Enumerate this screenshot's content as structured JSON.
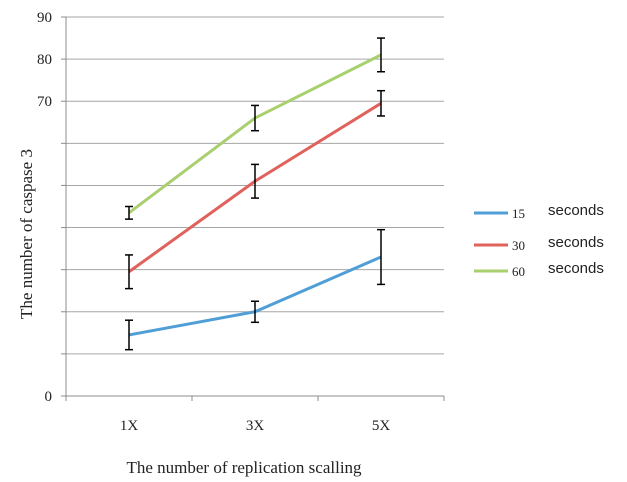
{
  "chart_data": {
    "type": "line",
    "title": "",
    "xlabel": "The number of replication scalling",
    "ylabel": "The number of caspase 3",
    "categories": [
      "1X",
      "3X",
      "5X"
    ],
    "ylim": [
      0,
      90
    ],
    "y_tick_labels": [
      {
        "value": 0,
        "label": "0"
      },
      {
        "value": 70,
        "label": "70"
      },
      {
        "value": 80,
        "label": "80"
      },
      {
        "value": 90,
        "label": "90"
      }
    ],
    "grid": "horizontal",
    "legend_position": "right",
    "series": [
      {
        "name": "15",
        "unit": "seconds",
        "color": "#4f9ed6",
        "values": [
          14.5,
          20,
          33
        ],
        "error": [
          3.5,
          2.5,
          6.5
        ]
      },
      {
        "name": "30",
        "unit": "seconds",
        "color": "#e0625c",
        "values": [
          29.5,
          51,
          69.5
        ],
        "error": [
          4,
          4,
          3
        ]
      },
      {
        "name": "60",
        "unit": "seconds",
        "color": "#a9cf6f",
        "values": [
          43.5,
          66,
          81
        ],
        "error": [
          1.5,
          3,
          4
        ]
      }
    ]
  }
}
